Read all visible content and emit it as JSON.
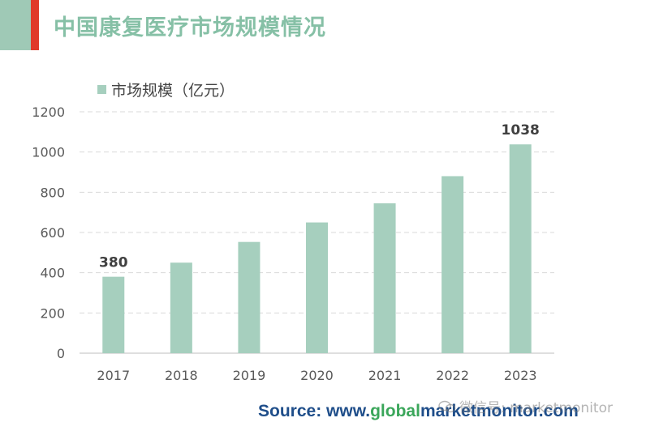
{
  "page": {
    "title": "中国康复医疗市场规模情况",
    "source_prefix": "Source: ",
    "source_site_start": "www.",
    "source_site_accent": "global",
    "source_site_end": "marketmonitor.com",
    "watermark": "微信号: marketmonitor"
  },
  "colors": {
    "bar": "#a6cfbe",
    "title": "#86c0a6",
    "accent_red": "#e03a2a",
    "source_blue": "#1f4e8a",
    "source_green": "#3aa65a"
  },
  "chart_data": {
    "type": "bar",
    "title": "",
    "categories": [
      "2017",
      "2018",
      "2019",
      "2020",
      "2021",
      "2022",
      "2023"
    ],
    "series": [
      {
        "name": "市场规模（亿元）",
        "values": [
          380,
          450,
          553,
          650,
          745,
          880,
          1038
        ]
      }
    ],
    "data_labels": [
      {
        "category": "2017",
        "text": "380"
      },
      {
        "category": "2023",
        "text": "1038"
      }
    ],
    "ylim": [
      0,
      1200
    ],
    "yticks": [
      "0",
      "200",
      "400",
      "600",
      "800",
      "1000",
      "1200"
    ],
    "grid": true,
    "legend": "top-left"
  }
}
